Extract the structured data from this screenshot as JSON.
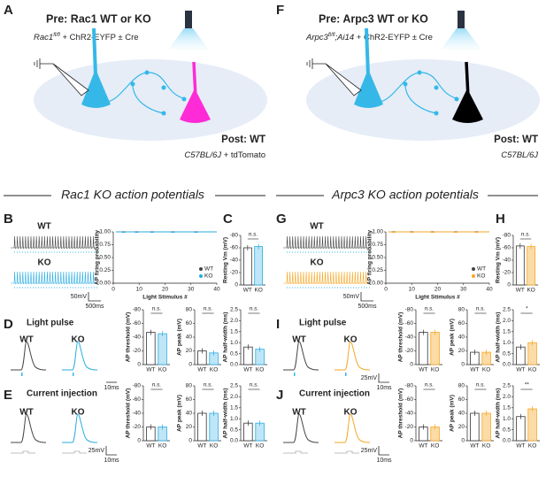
{
  "sides": [
    {
      "color": "#29abe2",
      "light_color": "#bfe6f7",
      "post_color": "#ff2bd6",
      "diagram": {
        "panel": "A",
        "pre": "Pre: Rac1 WT or KO",
        "genotype": "Rac1",
        "genotype_sup": "fl/fl",
        "genotype_rest": " + ChR2-EYFP ± Cre",
        "post": "Post: WT",
        "post_line": "C57BL/6J",
        "post_rest": " + tdTomato"
      },
      "section_title": "Rac1 KO action potentials",
      "traces": {
        "panel": "B",
        "wt": "WT",
        "ko": "KO",
        "scale_v": "50mV",
        "scale_t": "500ms"
      },
      "firing": {
        "type": "line",
        "ylabel": "AP firing probability",
        "xlabel": "Light Stimulus #",
        "xlim": [
          0,
          40
        ],
        "xticks": [
          0,
          10,
          20,
          30,
          40
        ],
        "ylim": [
          0,
          1
        ],
        "yticks": [
          {
            "value": 0,
            "label": "0.00"
          },
          {
            "value": 0.25,
            "label": "0.25"
          },
          {
            "value": 0.5,
            "label": "0.50"
          },
          {
            "value": 0.75,
            "label": "0.75"
          },
          {
            "value": 1,
            "label": "1.00"
          }
        ],
        "legend": "lower right",
        "x": [
          1,
          2,
          3,
          4,
          5,
          6,
          7,
          8,
          9,
          10,
          11,
          12,
          13,
          14,
          15,
          16,
          17,
          18,
          19,
          20,
          21,
          22,
          23,
          24,
          25,
          26,
          27,
          28,
          29,
          30,
          31,
          32,
          33,
          34,
          35,
          36,
          37,
          38,
          39,
          40
        ],
        "series": [
          {
            "name": "WT",
            "color": "#444444",
            "values": [
              1,
              1,
              1,
              1,
              1,
              1,
              1,
              1,
              1,
              1,
              1,
              1,
              1,
              1,
              1,
              1,
              1,
              1,
              1,
              1,
              1,
              1,
              1,
              1,
              1,
              1,
              1,
              1,
              1,
              1,
              1,
              1,
              1,
              1,
              1,
              1,
              1,
              1,
              1,
              1
            ]
          },
          {
            "name": "KO",
            "color": "#29abe2",
            "values": [
              1,
              1,
              1,
              0.99,
              1,
              1,
              1,
              1,
              0.99,
              1,
              1,
              1,
              1,
              1,
              0.99,
              1,
              1,
              1,
              1,
              1,
              1,
              1,
              0.99,
              1,
              1,
              1,
              1,
              1,
              1,
              1,
              1,
              0.99,
              1,
              1,
              1,
              1,
              1,
              1,
              1,
              1
            ]
          }
        ]
      },
      "resting": {
        "type": "bar",
        "panel": "C",
        "ylabel": "Resting Vm (mV)",
        "categories": [
          "WT",
          "KO"
        ],
        "values": [
          -60,
          -62
        ],
        "ylim": [
          0,
          -80
        ],
        "yticks": [
          0,
          -20,
          -40,
          -60,
          -80
        ],
        "annotation": "n.s."
      },
      "light": {
        "panel": "D",
        "title": "Light pulse",
        "wt": "WT",
        "ko": "KO",
        "scale_t": "10ms",
        "charts": [
          {
            "type": "bar",
            "ylabel": "AP threshold (mV)",
            "categories": [
              "WT",
              "KO"
            ],
            "values": [
              -47,
              -45
            ],
            "ylim": [
              0,
              -80
            ],
            "yticks": [
              0,
              -20,
              -40,
              -60,
              -80
            ],
            "annotation": "n.s."
          },
          {
            "type": "bar",
            "ylabel": "AP peak (mV)",
            "categories": [
              "WT",
              "KO"
            ],
            "values": [
              20,
              17
            ],
            "ylim": [
              0,
              80
            ],
            "yticks": [
              0,
              20,
              40,
              60,
              80
            ],
            "annotation": "n.s."
          },
          {
            "type": "bar",
            "ylabel": "AP half-width (ms)",
            "categories": [
              "WT",
              "KO"
            ],
            "values": [
              0.8,
              0.7
            ],
            "ylim": [
              0,
              2.5
            ],
            "yticks": [
              {
                "value": 0,
                "label": "0.0"
              },
              {
                "value": 0.5,
                "label": "0.5"
              },
              {
                "value": 1,
                "label": "1.0"
              },
              {
                "value": 1.5,
                "label": "1.5"
              },
              {
                "value": 2,
                "label": "2.0"
              },
              {
                "value": 2.5,
                "label": "2.5"
              }
            ],
            "annotation": "n.s."
          }
        ]
      },
      "current": {
        "panel": "E",
        "title": "Current injection",
        "wt": "WT",
        "ko": "KO",
        "scale_v": "25mV",
        "scale_t": "10ms",
        "charts": [
          {
            "type": "bar",
            "ylabel": "AP threshold (mV)",
            "categories": [
              "WT",
              "KO"
            ],
            "values": [
              -20,
              -20
            ],
            "ylim": [
              0,
              -80
            ],
            "yticks": [
              0,
              -20,
              -40,
              -60,
              -80
            ],
            "annotation": "n.s."
          },
          {
            "type": "bar",
            "ylabel": "AP peak (mV)",
            "categories": [
              "WT",
              "KO"
            ],
            "values": [
              40,
              40
            ],
            "ylim": [
              0,
              80
            ],
            "yticks": [
              0,
              20,
              40,
              60,
              80
            ],
            "annotation": "n.s."
          },
          {
            "type": "bar",
            "ylabel": "AP half-width (ms)",
            "categories": [
              "WT",
              "KO"
            ],
            "values": [
              0.8,
              0.8
            ],
            "ylim": [
              0,
              2.5
            ],
            "yticks": [
              {
                "value": 0,
                "label": "0.0"
              },
              {
                "value": 0.5,
                "label": "0.5"
              },
              {
                "value": 1,
                "label": "1.0"
              },
              {
                "value": 1.5,
                "label": "1.5"
              },
              {
                "value": 2,
                "label": "2.0"
              },
              {
                "value": 2.5,
                "label": "2.5"
              }
            ],
            "annotation": "n.s."
          }
        ]
      }
    },
    {
      "color": "#f5a623",
      "light_color": "#fbdca6",
      "post_color": "#000000",
      "diagram": {
        "panel": "F",
        "pre": "Pre: Arpc3 WT or KO",
        "genotype": "Arpc3",
        "genotype_sup": "fl/fl",
        "genotype_extra": ";Ai14",
        "genotype_rest": " + ChR2-EYFP ± Cre",
        "post": "Post: WT",
        "post_line": "C57BL/6J"
      },
      "section_title": "Arpc3 KO action potentials",
      "traces": {
        "panel": "G",
        "wt": "WT",
        "ko": "KO",
        "scale_v": "50mV",
        "scale_t": "500ms"
      },
      "firing": {
        "type": "line",
        "ylabel": "AP firing probability",
        "xlabel": "Light Stimulus #",
        "xlim": [
          0,
          40
        ],
        "xticks": [
          0,
          10,
          20,
          30,
          40
        ],
        "ylim": [
          0,
          1
        ],
        "yticks": [
          {
            "value": 0,
            "label": "0.00"
          },
          {
            "value": 0.25,
            "label": "0.25"
          },
          {
            "value": 0.5,
            "label": "0.50"
          },
          {
            "value": 0.75,
            "label": "0.75"
          },
          {
            "value": 1,
            "label": "1.00"
          }
        ],
        "legend": "lower right",
        "x": [
          1,
          2,
          3,
          4,
          5,
          6,
          7,
          8,
          9,
          10,
          11,
          12,
          13,
          14,
          15,
          16,
          17,
          18,
          19,
          20,
          21,
          22,
          23,
          24,
          25,
          26,
          27,
          28,
          29,
          30,
          31,
          32,
          33,
          34,
          35,
          36,
          37,
          38,
          39,
          40
        ],
        "series": [
          {
            "name": "WT",
            "color": "#444444",
            "values": [
              1,
              1,
              1,
              1,
              1,
              1,
              1,
              1,
              1,
              1,
              1,
              1,
              1,
              1,
              1,
              1,
              1,
              1,
              1,
              1,
              1,
              1,
              1,
              1,
              1,
              1,
              1,
              1,
              1,
              1,
              1,
              1,
              1,
              1,
              1,
              1,
              1,
              1,
              1,
              1
            ]
          },
          {
            "name": "KO",
            "color": "#f5a623",
            "values": [
              1,
              1,
              0.99,
              1,
              1,
              1,
              1,
              1,
              1,
              0.99,
              1,
              1,
              1,
              1,
              1,
              1,
              1,
              0.99,
              1,
              1,
              1,
              1,
              1,
              1,
              1,
              1,
              0.99,
              1,
              1,
              1,
              1,
              1,
              1,
              1,
              0.99,
              1,
              1,
              1,
              1,
              1
            ]
          }
        ]
      },
      "resting": {
        "type": "bar",
        "panel": "H",
        "ylabel": "Resting Vm (mV)",
        "categories": [
          "WT",
          "KO"
        ],
        "values": [
          -63,
          -62
        ],
        "ylim": [
          0,
          -80
        ],
        "yticks": [
          0,
          -20,
          -40,
          -60,
          -80
        ],
        "annotation": "n.s."
      },
      "light": {
        "panel": "I",
        "title": "Light pulse",
        "wt": "WT",
        "ko": "KO",
        "scale_v": "25mV",
        "scale_t": "10ms",
        "charts": [
          {
            "type": "bar",
            "ylabel": "AP threshold (mV)",
            "categories": [
              "WT",
              "KO"
            ],
            "values": [
              -47,
              -47
            ],
            "ylim": [
              0,
              -80
            ],
            "yticks": [
              0,
              -20,
              -40,
              -60,
              -80
            ],
            "annotation": "n.s."
          },
          {
            "type": "bar",
            "ylabel": "AP peak (mV)",
            "categories": [
              "WT",
              "KO"
            ],
            "values": [
              18,
              18
            ],
            "ylim": [
              0,
              80
            ],
            "yticks": [
              0,
              20,
              40,
              60,
              80
            ],
            "annotation": "n.s."
          },
          {
            "type": "bar",
            "ylabel": "AP half-width (ms)",
            "categories": [
              "WT",
              "KO"
            ],
            "values": [
              0.8,
              1.0
            ],
            "ylim": [
              0,
              2.5
            ],
            "yticks": [
              {
                "value": 0,
                "label": "0.0"
              },
              {
                "value": 0.5,
                "label": "0.5"
              },
              {
                "value": 1,
                "label": "1.0"
              },
              {
                "value": 1.5,
                "label": "1.5"
              },
              {
                "value": 2,
                "label": "2.0"
              },
              {
                "value": 2.5,
                "label": "2.5"
              }
            ],
            "annotation": "*"
          }
        ]
      },
      "current": {
        "panel": "J",
        "title": "Current injection",
        "wt": "WT",
        "ko": "KO",
        "scale_v": "25mV",
        "scale_t": "10ms",
        "charts": [
          {
            "type": "bar",
            "ylabel": "AP threshold (mV)",
            "categories": [
              "WT",
              "KO"
            ],
            "values": [
              -20,
              -20
            ],
            "ylim": [
              0,
              -80
            ],
            "yticks": [
              0,
              -20,
              -40,
              -60,
              -80
            ],
            "annotation": "n.s."
          },
          {
            "type": "bar",
            "ylabel": "AP peak (mV)",
            "categories": [
              "WT",
              "KO"
            ],
            "values": [
              40,
              40
            ],
            "ylim": [
              0,
              80
            ],
            "yticks": [
              0,
              20,
              40,
              60,
              80
            ],
            "annotation": "n.s."
          },
          {
            "type": "bar",
            "ylabel": "AP half-width (ms)",
            "categories": [
              "WT",
              "KO"
            ],
            "values": [
              1.1,
              1.45
            ],
            "ylim": [
              0,
              2.5
            ],
            "yticks": [
              {
                "value": 0,
                "label": "0.0"
              },
              {
                "value": 0.5,
                "label": "0.5"
              },
              {
                "value": 1,
                "label": "1.0"
              },
              {
                "value": 1.5,
                "label": "1.5"
              },
              {
                "value": 2,
                "label": "2.0"
              },
              {
                "value": 2.5,
                "label": "2.5"
              }
            ],
            "annotation": "**"
          }
        ]
      }
    }
  ]
}
